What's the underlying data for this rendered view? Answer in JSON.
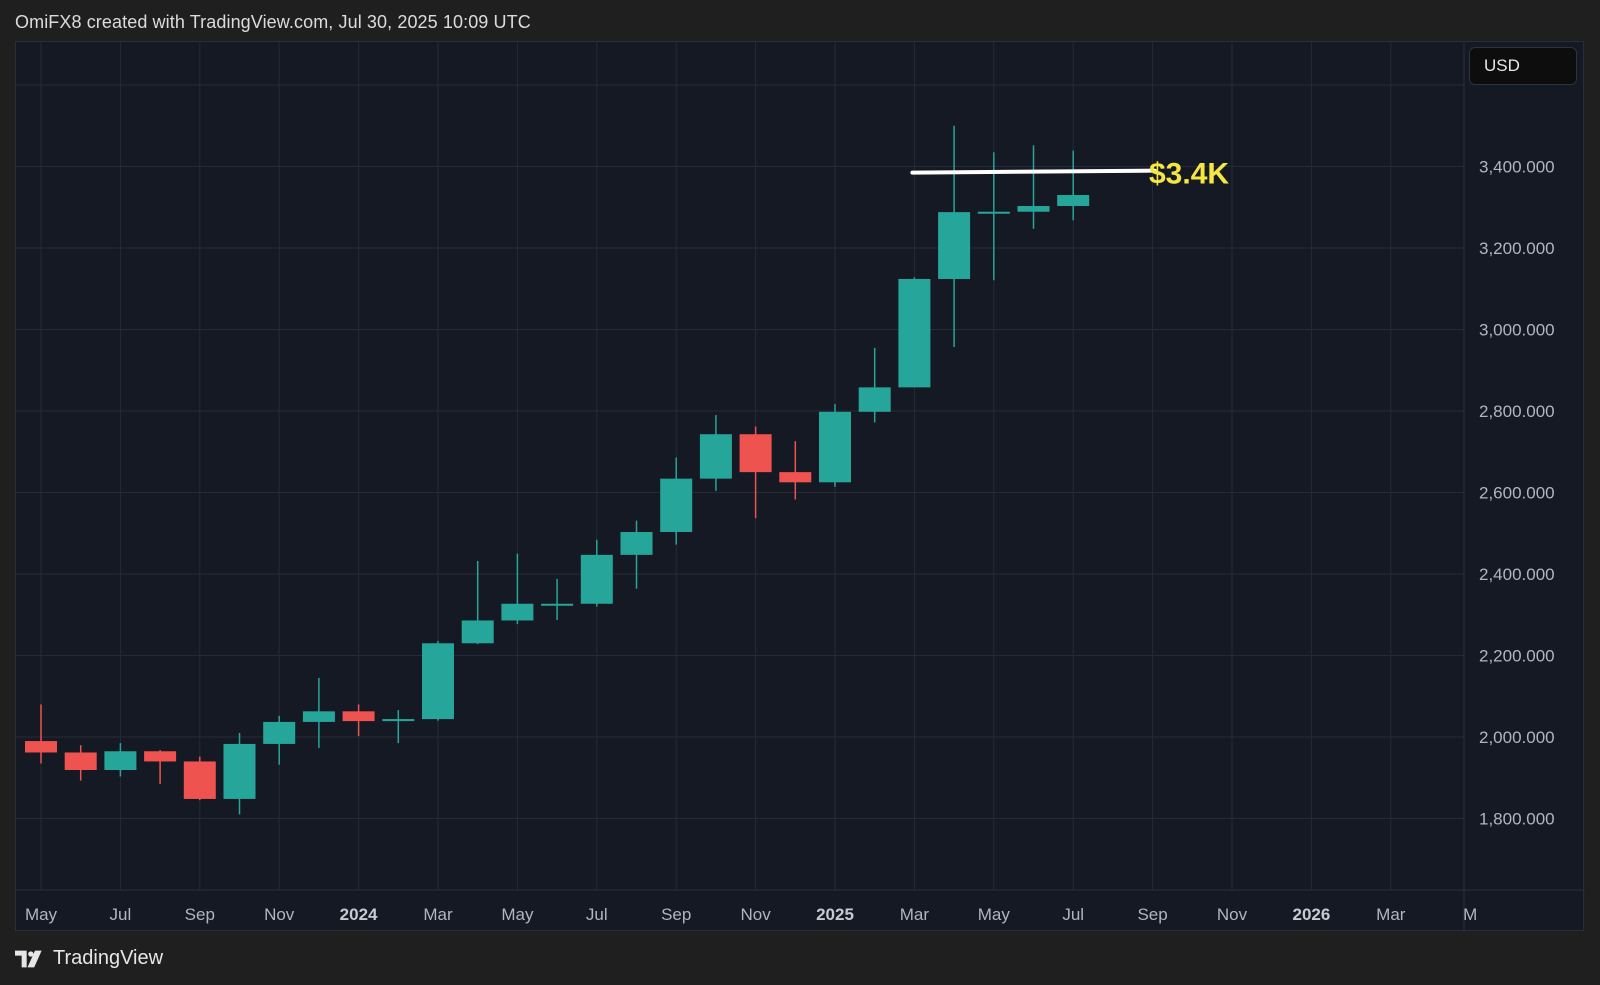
{
  "header": {
    "caption": "OmiFX8 created with TradingView.com, Jul 30, 2025 10:09 UTC"
  },
  "currency_badge": "USD",
  "footer": {
    "brand": "TradingView"
  },
  "annotation": {
    "label": "$3.4K",
    "color": "#f5e642",
    "line_color": "#ffffff",
    "price": 3385
  },
  "colors": {
    "up": "#26a69a",
    "down": "#ef5350",
    "grid": "#252a36",
    "bg": "#151924",
    "axis_text": "#b2b5be"
  },
  "chart_data": {
    "type": "candlestick",
    "title": "",
    "xlabel": "",
    "ylabel": "USD",
    "interval": "1M",
    "ylim": [
      1640,
      3700
    ],
    "y_ticks": [
      "1,800.000",
      "2,000.000",
      "2,200.000",
      "2,400.000",
      "2,600.000",
      "2,800.000",
      "3,000.000",
      "3,200.000",
      "3,400.000"
    ],
    "x_ticks": [
      {
        "label": "May",
        "bold": false
      },
      {
        "label": "Jul",
        "bold": false
      },
      {
        "label": "Sep",
        "bold": false
      },
      {
        "label": "Nov",
        "bold": false
      },
      {
        "label": "2024",
        "bold": true
      },
      {
        "label": "Mar",
        "bold": false
      },
      {
        "label": "May",
        "bold": false
      },
      {
        "label": "Jul",
        "bold": false
      },
      {
        "label": "Sep",
        "bold": false
      },
      {
        "label": "Nov",
        "bold": false
      },
      {
        "label": "2025",
        "bold": true
      },
      {
        "label": "Mar",
        "bold": false
      },
      {
        "label": "May",
        "bold": false
      },
      {
        "label": "Jul",
        "bold": false
      },
      {
        "label": "Sep",
        "bold": false
      },
      {
        "label": "Nov",
        "bold": false
      },
      {
        "label": "2026",
        "bold": true
      },
      {
        "label": "Mar",
        "bold": false
      },
      {
        "label": "M",
        "bold": false
      }
    ],
    "candles": [
      {
        "date": "2023-05",
        "open": 1990,
        "high": 2080,
        "low": 1935,
        "close": 1962
      },
      {
        "date": "2023-06",
        "open": 1962,
        "high": 1980,
        "low": 1893,
        "close": 1919
      },
      {
        "date": "2023-07",
        "open": 1919,
        "high": 1985,
        "low": 1903,
        "close": 1965
      },
      {
        "date": "2023-08",
        "open": 1965,
        "high": 1968,
        "low": 1885,
        "close": 1940
      },
      {
        "date": "2023-09",
        "open": 1940,
        "high": 1952,
        "low": 1845,
        "close": 1848
      },
      {
        "date": "2023-10",
        "open": 1848,
        "high": 2010,
        "low": 1810,
        "close": 1983
      },
      {
        "date": "2023-11",
        "open": 1983,
        "high": 2052,
        "low": 1932,
        "close": 2037
      },
      {
        "date": "2023-12",
        "open": 2037,
        "high": 2145,
        "low": 1973,
        "close": 2063
      },
      {
        "date": "2024-01",
        "open": 2063,
        "high": 2080,
        "low": 2002,
        "close": 2039
      },
      {
        "date": "2024-02",
        "open": 2039,
        "high": 2066,
        "low": 1985,
        "close": 2044
      },
      {
        "date": "2024-03",
        "open": 2044,
        "high": 2236,
        "low": 2040,
        "close": 2230
      },
      {
        "date": "2024-04",
        "open": 2230,
        "high": 2432,
        "low": 2228,
        "close": 2286
      },
      {
        "date": "2024-05",
        "open": 2286,
        "high": 2450,
        "low": 2277,
        "close": 2327
      },
      {
        "date": "2024-06",
        "open": 2327,
        "high": 2388,
        "low": 2287,
        "close": 2327
      },
      {
        "date": "2024-07",
        "open": 2327,
        "high": 2484,
        "low": 2320,
        "close": 2447
      },
      {
        "date": "2024-08",
        "open": 2447,
        "high": 2531,
        "low": 2364,
        "close": 2503
      },
      {
        "date": "2024-09",
        "open": 2503,
        "high": 2686,
        "low": 2472,
        "close": 2634
      },
      {
        "date": "2024-10",
        "open": 2634,
        "high": 2790,
        "low": 2604,
        "close": 2743
      },
      {
        "date": "2024-11",
        "open": 2743,
        "high": 2762,
        "low": 2537,
        "close": 2650
      },
      {
        "date": "2024-12",
        "open": 2650,
        "high": 2726,
        "low": 2583,
        "close": 2625
      },
      {
        "date": "2025-01",
        "open": 2625,
        "high": 2817,
        "low": 2614,
        "close": 2798
      },
      {
        "date": "2025-02",
        "open": 2798,
        "high": 2955,
        "low": 2772,
        "close": 2858
      },
      {
        "date": "2025-03",
        "open": 2858,
        "high": 3128,
        "low": 2858,
        "close": 3124
      },
      {
        "date": "2025-04",
        "open": 3124,
        "high": 3500,
        "low": 2957,
        "close": 3288
      },
      {
        "date": "2025-05",
        "open": 3288,
        "high": 3435,
        "low": 3121,
        "close": 3289
      },
      {
        "date": "2025-06",
        "open": 3289,
        "high": 3452,
        "low": 3247,
        "close": 3303
      },
      {
        "date": "2025-07",
        "open": 3303,
        "high": 3439,
        "low": 3268,
        "close": 3330
      }
    ]
  }
}
